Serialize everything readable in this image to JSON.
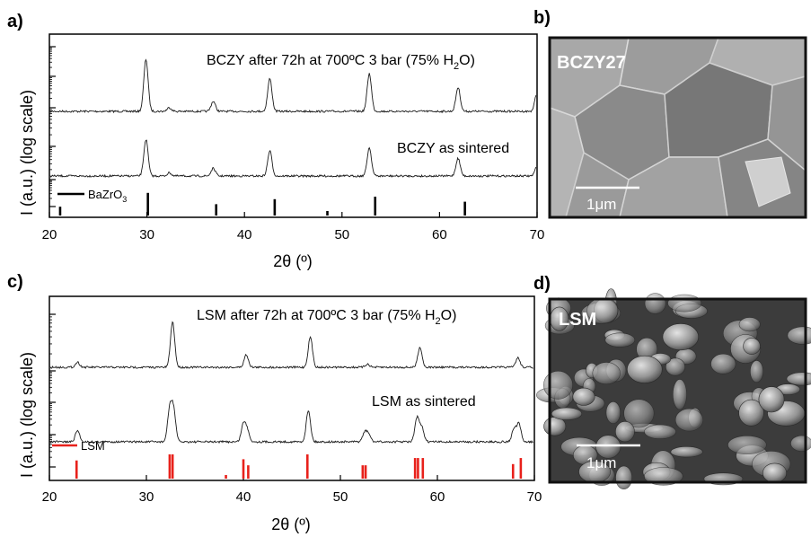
{
  "chart_data": [
    {
      "panel": "a)",
      "type": "line",
      "xlabel": "2θ (º)",
      "ylabel": "I (a.u.) (log scale)",
      "xlim": [
        20,
        70
      ],
      "xticks": [
        20,
        30,
        40,
        50,
        60,
        70
      ],
      "y_scale": "log",
      "grid": false,
      "annotations": [
        "BCZY after 72h at 700ºC 3 bar (75% H",
        "2",
        "O)",
        "BCZY as sintered"
      ],
      "series": [
        {
          "label": "BCZY after 72h at 700ºC 3 bar (75% H2O)",
          "peaks": [
            {
              "x": 29.9,
              "h": 0.83
            },
            {
              "x": 32.3,
              "h": 0.06
            },
            {
              "x": 36.8,
              "h": 0.16
            },
            {
              "x": 42.6,
              "h": 0.52
            },
            {
              "x": 52.8,
              "h": 0.6
            },
            {
              "x": 61.9,
              "h": 0.38
            },
            {
              "x": 70.0,
              "h": 0.3
            }
          ]
        },
        {
          "label": "BCZY as sintered",
          "peaks": [
            {
              "x": 29.9,
              "h": 0.58
            },
            {
              "x": 32.3,
              "h": 0.05
            },
            {
              "x": 36.8,
              "h": 0.12
            },
            {
              "x": 42.6,
              "h": 0.4
            },
            {
              "x": 52.8,
              "h": 0.45
            },
            {
              "x": 61.9,
              "h": 0.28
            },
            {
              "x": 70.0,
              "h": 0.15
            }
          ]
        }
      ],
      "reference": {
        "name": "BaZrO",
        "name_sub": "3",
        "color": "#000000",
        "sticks": [
          {
            "x": 21.1,
            "h": 0.35
          },
          {
            "x": 30.1,
            "h": 0.9
          },
          {
            "x": 37.1,
            "h": 0.45
          },
          {
            "x": 43.1,
            "h": 0.65
          },
          {
            "x": 48.5,
            "h": 0.18
          },
          {
            "x": 53.4,
            "h": 0.75
          },
          {
            "x": 62.6,
            "h": 0.55
          }
        ]
      }
    },
    {
      "panel": "c)",
      "type": "line",
      "xlabel": "2θ (º)",
      "ylabel": "I (a.u.) (log scale)",
      "xlim": [
        20,
        70
      ],
      "xticks": [
        20,
        30,
        40,
        50,
        60,
        70
      ],
      "y_scale": "log",
      "grid": false,
      "annotations": [
        "LSM after 72h at 700ºC  3 bar (75% H",
        "2",
        "O)",
        "LSM as sintered"
      ],
      "series": [
        {
          "label": "LSM after 72h at 700ºC 3 bar (75% H2O)",
          "peaks": [
            {
              "x": 22.9,
              "h": 0.08
            },
            {
              "x": 32.7,
              "h": 0.72
            },
            {
              "x": 40.3,
              "h": 0.2
            },
            {
              "x": 46.9,
              "h": 0.48
            },
            {
              "x": 52.8,
              "h": 0.05
            },
            {
              "x": 58.2,
              "h": 0.32
            },
            {
              "x": 68.3,
              "h": 0.15
            }
          ]
        },
        {
          "label": "LSM as sintered",
          "peaks": [
            {
              "x": 22.9,
              "h": 0.18
            },
            {
              "x": 32.4,
              "h": 0.5
            },
            {
              "x": 32.8,
              "h": 0.5
            },
            {
              "x": 40.0,
              "h": 0.28
            },
            {
              "x": 40.4,
              "h": 0.18
            },
            {
              "x": 46.7,
              "h": 0.5
            },
            {
              "x": 52.5,
              "h": 0.14
            },
            {
              "x": 52.9,
              "h": 0.12
            },
            {
              "x": 57.9,
              "h": 0.38
            },
            {
              "x": 58.4,
              "h": 0.22
            },
            {
              "x": 67.9,
              "h": 0.2
            },
            {
              "x": 68.4,
              "h": 0.28
            }
          ]
        }
      ],
      "reference": {
        "name": "LSM",
        "color": "#e8211b",
        "sticks": [
          {
            "x": 22.8,
            "h": 0.75
          },
          {
            "x": 32.4,
            "h": 1.0
          },
          {
            "x": 32.7,
            "h": 1.0
          },
          {
            "x": 38.2,
            "h": 0.15
          },
          {
            "x": 40.0,
            "h": 0.8
          },
          {
            "x": 40.5,
            "h": 0.55
          },
          {
            "x": 46.6,
            "h": 1.0
          },
          {
            "x": 52.3,
            "h": 0.55
          },
          {
            "x": 52.6,
            "h": 0.55
          },
          {
            "x": 57.7,
            "h": 0.85
          },
          {
            "x": 58.0,
            "h": 0.85
          },
          {
            "x": 58.5,
            "h": 0.85
          },
          {
            "x": 67.8,
            "h": 0.6
          },
          {
            "x": 68.6,
            "h": 0.85
          }
        ]
      }
    }
  ],
  "micrographs": [
    {
      "panel": "b)",
      "label": "BCZY27",
      "scale_bar": "1μm"
    },
    {
      "panel": "d)",
      "label": "LSM",
      "scale_bar": "1μm"
    }
  ]
}
